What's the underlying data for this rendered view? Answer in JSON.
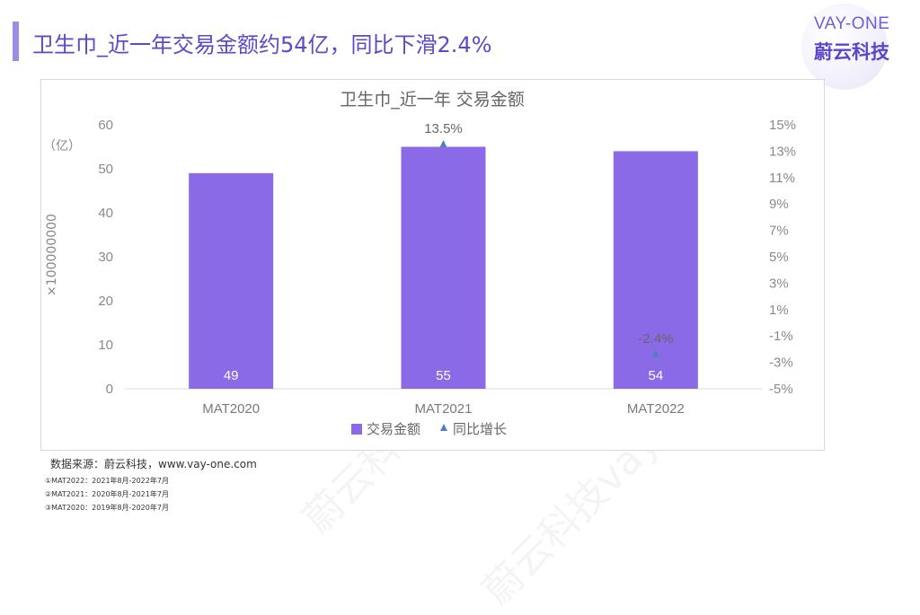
{
  "slide": {
    "title": "卫生巾_近一年交易金额约54亿，同比下滑2.4%"
  },
  "logo": {
    "top": "VAY-ONE",
    "bottom": "蔚云科技"
  },
  "chart_data": {
    "type": "bar",
    "title": "卫生巾_近一年 交易金额",
    "categories": [
      "MAT2020",
      "MAT2021",
      "MAT2022"
    ],
    "series": [
      {
        "name": "交易金额",
        "type": "bar",
        "axis": "left",
        "color": "#8b6ae8",
        "values": [
          49,
          55,
          54
        ],
        "labels": [
          "49",
          "55",
          "54"
        ]
      },
      {
        "name": "同比增长",
        "type": "scatter",
        "axis": "right",
        "color": "#4e81c4",
        "values": [
          null,
          13.5,
          -2.4
        ],
        "labels": [
          "",
          "13.5%",
          "-2.4%"
        ]
      }
    ],
    "ylim": [
      0,
      60
    ],
    "yticks": [
      "0",
      "10",
      "20",
      "30",
      "40",
      "50",
      "60"
    ],
    "y2lim": [
      -5,
      15
    ],
    "y2ticks": [
      "-5%",
      "-3%",
      "-1%",
      "1%",
      "3%",
      "5%",
      "7%",
      "9%",
      "11%",
      "13%",
      "15%"
    ],
    "ylabel_unit": "（亿）",
    "ylabel_multiplier": "×100000000",
    "legend": [
      "交易金额",
      "同比增长"
    ],
    "legend_position": "bottom",
    "grid": false
  },
  "source": "数据来源：蔚云科技，www.vay-one.com",
  "notes": [
    "①MAT2022：2021年8月-2022年7月",
    "②MAT2021：2020年8月-2021年7月",
    "③MAT2020：2019年8月-2020年7月"
  ],
  "watermark": "蔚云科技vay-one.com"
}
